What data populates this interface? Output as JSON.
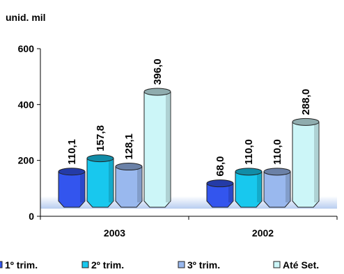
{
  "chart_data": {
    "type": "bar",
    "unit_label": "unid. mil",
    "categories": [
      "2003",
      "2002"
    ],
    "series": [
      {
        "name": "1º trim.",
        "values": [
          110.1,
          68.0
        ],
        "labels": [
          "110,1",
          "68,0"
        ],
        "color": "#3355ee"
      },
      {
        "name": "2º trim.",
        "values": [
          157.8,
          110.0
        ],
        "labels": [
          "157,8",
          "110,0"
        ],
        "color": "#18c8ee"
      },
      {
        "name": "3º trim.",
        "values": [
          128.1,
          110.0
        ],
        "labels": [
          "128,1",
          "110,0"
        ],
        "color": "#99b8ee"
      },
      {
        "name": "Até Set.",
        "values": [
          396.0,
          288.0
        ],
        "labels": [
          "396,0",
          "288,0"
        ],
        "color": "#ccf6f8"
      }
    ],
    "y_ticks": [
      "0",
      "200",
      "400",
      "600"
    ],
    "ylim": [
      0,
      600
    ],
    "legend_position": "bottom",
    "grid": false
  }
}
